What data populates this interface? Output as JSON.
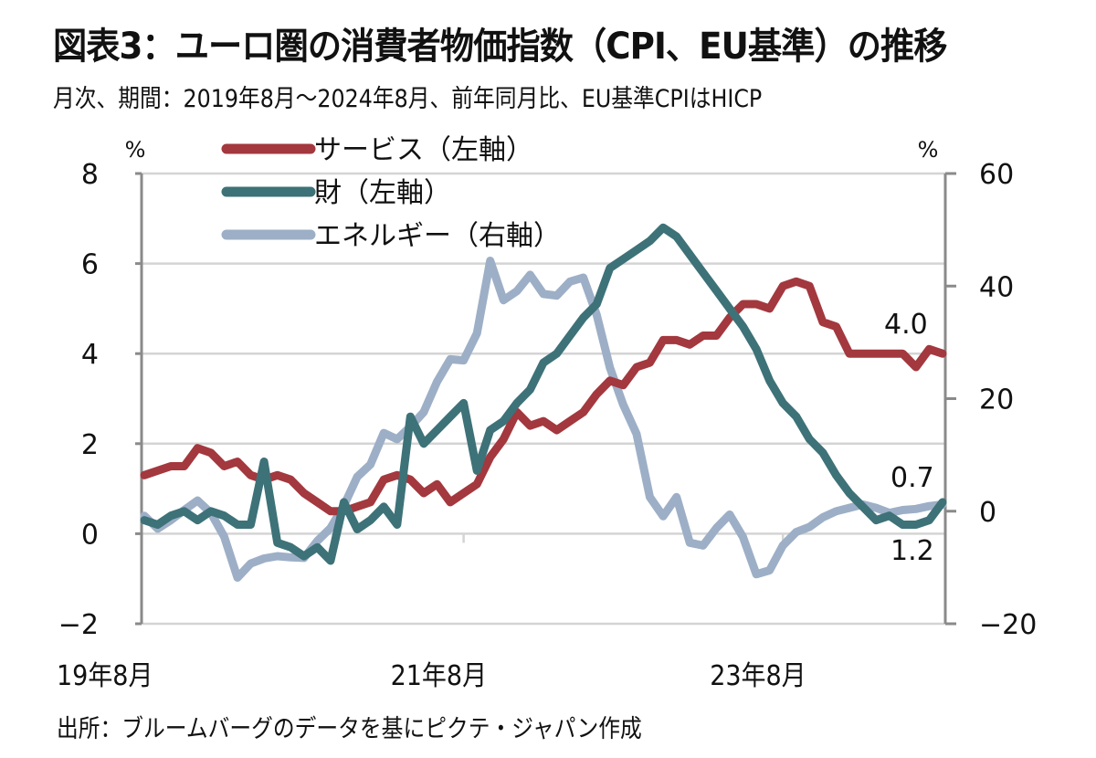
{
  "header": {
    "title": "図表3：ユーロ圏の消費者物価指数（CPI、EU基準）の推移",
    "subtitle": "月次、期間：2019年8月～2024年8月、前年同月比、EU基準CPIはHICP"
  },
  "footer": {
    "source": "出所：ブルームバーグのデータを基にピクテ・ジャパン作成"
  },
  "chart_data": {
    "type": "line",
    "title": "図表3：ユーロ圏の消費者物価指数（CPI、EU基準）の推移",
    "subtitle": "月次、期間：2019年8月～2024年8月、前年同月比、EU基準CPIはHICP",
    "xlabel": "",
    "x_start": "2019-08",
    "x_end": "2024-08",
    "x_frequency": "monthly",
    "x_tick_labels": [
      {
        "index": 0,
        "label": "19年8月"
      },
      {
        "index": 24,
        "label": "21年8月"
      },
      {
        "index": 48,
        "label": "23年8月"
      }
    ],
    "left_axis": {
      "unit": "%",
      "ylim": [
        -2,
        8
      ],
      "ticks": [
        8,
        6,
        4,
        2,
        0,
        -2
      ]
    },
    "right_axis": {
      "unit": "%",
      "ylim": [
        -20,
        60
      ],
      "ticks": [
        60,
        40,
        20,
        0,
        -20
      ]
    },
    "grid": true,
    "legend_position": "top-left",
    "series": [
      {
        "name": "サービス（左軸）",
        "axis": "left",
        "color": "#A3383E",
        "end_label": "4.0",
        "values": [
          1.3,
          1.4,
          1.5,
          1.5,
          1.9,
          1.8,
          1.5,
          1.6,
          1.3,
          1.2,
          1.3,
          1.2,
          0.9,
          0.7,
          0.5,
          0.5,
          0.6,
          0.7,
          1.2,
          1.3,
          1.2,
          0.9,
          1.1,
          0.7,
          0.9,
          1.1,
          1.7,
          2.1,
          2.7,
          2.4,
          2.5,
          2.3,
          2.5,
          2.7,
          3.1,
          3.4,
          3.3,
          3.7,
          3.8,
          4.3,
          4.3,
          4.2,
          4.4,
          4.4,
          4.8,
          5.1,
          5.1,
          5.0,
          5.5,
          5.6,
          5.5,
          4.7,
          4.6,
          4.0,
          4.0,
          4.0,
          4.0,
          4.0,
          3.7,
          4.1,
          4.0
        ]
      },
      {
        "name": "財（左軸）",
        "axis": "left",
        "color": "#3D7278",
        "end_label": "0.7",
        "values": [
          0.3,
          0.2,
          0.4,
          0.5,
          0.3,
          0.5,
          0.4,
          0.2,
          0.2,
          1.6,
          -0.2,
          -0.3,
          -0.5,
          -0.3,
          -0.6,
          0.7,
          0.1,
          0.3,
          0.6,
          0.2,
          2.6,
          2.0,
          2.3,
          2.6,
          2.9,
          1.4,
          2.3,
          2.5,
          2.9,
          3.2,
          3.8,
          4.0,
          4.4,
          4.8,
          5.1,
          5.9,
          6.1,
          6.3,
          6.5,
          6.8,
          6.6,
          6.2,
          5.8,
          5.4,
          5.0,
          4.6,
          4.1,
          3.4,
          2.9,
          2.6,
          2.1,
          1.8,
          1.3,
          0.9,
          0.6,
          0.3,
          0.4,
          0.2,
          0.2,
          0.3,
          0.7
        ]
      },
      {
        "name": "エネルギー（右軸）",
        "axis": "right",
        "color": "#9DAFC6",
        "end_label": "1.2",
        "values": [
          -0.8,
          -3.1,
          -1.6,
          0.2,
          1.9,
          -0.3,
          -4.5,
          -11.8,
          -9.3,
          -8.4,
          -8.0,
          -8.2,
          -8.3,
          -5.3,
          -3.0,
          1.0,
          6.1,
          8.3,
          13.9,
          12.8,
          15.0,
          17.6,
          23.0,
          27.0,
          26.8,
          31.6,
          44.5,
          37.5,
          39.1,
          42.0,
          38.6,
          38.3,
          40.8,
          41.5,
          34.9,
          25.5,
          18.9,
          13.7,
          2.5,
          -0.9,
          2.5,
          -5.6,
          -6.1,
          -3.0,
          -0.6,
          -4.6,
          -11.2,
          -10.5,
          -6.1,
          -3.7,
          -2.8,
          -1.1,
          0.0,
          0.6,
          1.2,
          0.6,
          -0.3,
          0.2,
          0.4,
          0.9,
          1.2
        ]
      }
    ]
  }
}
